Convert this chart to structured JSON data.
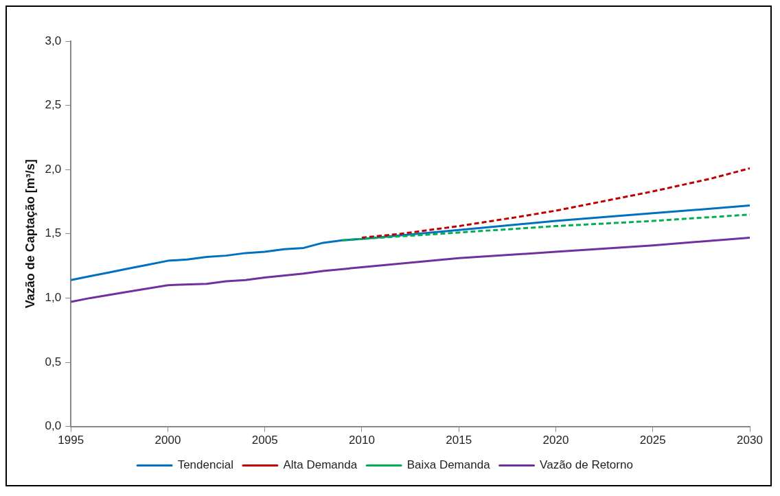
{
  "chart_data": {
    "type": "line",
    "ylabel": "Vazão de Captação [m³/s]",
    "xlim": [
      1995,
      2030
    ],
    "xticks": [
      1995,
      2000,
      2005,
      2010,
      2015,
      2020,
      2025,
      2030
    ],
    "ylim": [
      0,
      3
    ],
    "yticks": [
      {
        "value": 0,
        "label": "0,0"
      },
      {
        "value": 0.5,
        "label": "0,5"
      },
      {
        "value": 1,
        "label": "1,0"
      },
      {
        "value": 1.5,
        "label": "1,5"
      },
      {
        "value": 2,
        "label": "2,0"
      },
      {
        "value": 2.5,
        "label": "2,5"
      },
      {
        "value": 3,
        "label": "3,0"
      }
    ],
    "grid": false,
    "legend": "bottom",
    "marker": "none",
    "series": [
      {
        "name": "Tendencial",
        "color": "#0070c0",
        "line_style": "solid",
        "x": [
          1995,
          1996,
          1997,
          1998,
          1999,
          2000,
          2001,
          2002,
          2003,
          2004,
          2005,
          2006,
          2007,
          2008,
          2009,
          2010,
          2015,
          2020,
          2025,
          2030
        ],
        "values": [
          1.14,
          1.17,
          1.2,
          1.23,
          1.26,
          1.29,
          1.3,
          1.32,
          1.33,
          1.35,
          1.36,
          1.38,
          1.39,
          1.43,
          1.45,
          1.46,
          1.53,
          1.6,
          1.66,
          1.72
        ]
      },
      {
        "name": "Alta Demanda",
        "color": "#c00000",
        "line_style": "dashed",
        "x": [
          2010,
          2012,
          2015,
          2018,
          2020,
          2023,
          2025,
          2028,
          2030
        ],
        "values": [
          1.47,
          1.5,
          1.56,
          1.63,
          1.68,
          1.77,
          1.83,
          1.93,
          2.01
        ]
      },
      {
        "name": "Baixa Demanda",
        "color": "#00b050",
        "line_style": "dashed",
        "x": [
          2009,
          2010,
          2015,
          2020,
          2025,
          2030
        ],
        "values": [
          1.45,
          1.46,
          1.51,
          1.56,
          1.6,
          1.65
        ]
      },
      {
        "name": "Vazão de Retorno",
        "color": "#7030a0",
        "line_style": "solid",
        "x": [
          1995,
          1996,
          1998,
          2000,
          2002,
          2003,
          2004,
          2005,
          2007,
          2008,
          2010,
          2015,
          2020,
          2025,
          2030
        ],
        "values": [
          0.97,
          1.0,
          1.05,
          1.1,
          1.11,
          1.13,
          1.14,
          1.16,
          1.19,
          1.21,
          1.24,
          1.31,
          1.36,
          1.41,
          1.47
        ]
      }
    ]
  }
}
